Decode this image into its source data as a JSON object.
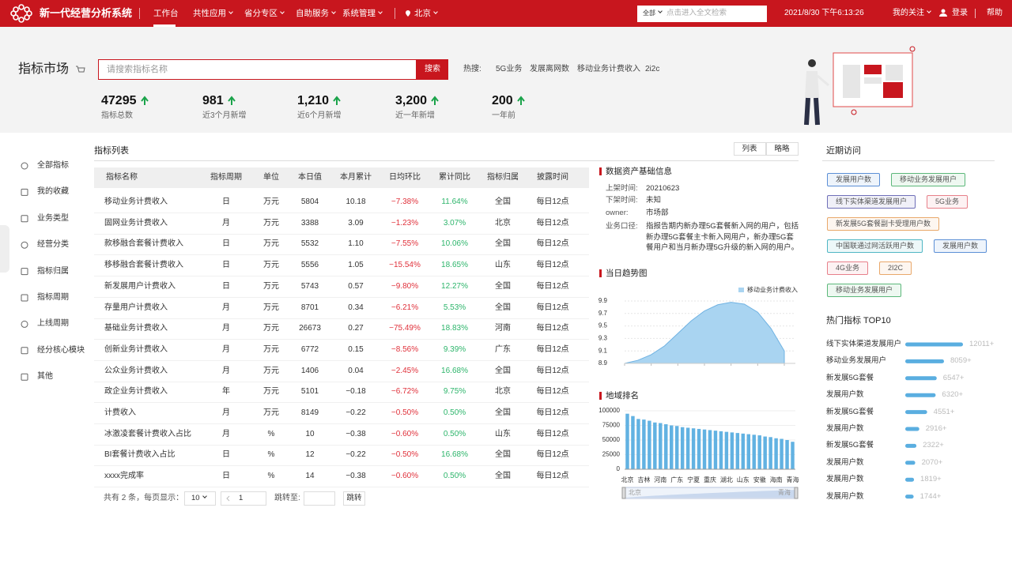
{
  "header": {
    "title": "新一代经营分析系统",
    "nav": [
      "工作台",
      "共性应用",
      "省分专区",
      "自助服务",
      "系统管理"
    ],
    "location": "北京",
    "search_scope": "全部",
    "search_placeholder": "点击进入全文检索",
    "datetime": "2021/8/30 下午6:13:26",
    "user_links": [
      "我的关注",
      "登录",
      "帮助"
    ]
  },
  "market": {
    "title": "指标市场",
    "search_placeholder": "请搜索指标名称",
    "search_button": "搜索",
    "hot_label": "热搜:",
    "hot_terms": [
      "5G业务",
      "发展离网数",
      "移动业务计费收入",
      "2i2c"
    ],
    "stats": [
      {
        "value": "47295",
        "label": "指标总数"
      },
      {
        "value": "981",
        "label": "近3个月新增"
      },
      {
        "value": "1,210",
        "label": "近6个月新增"
      },
      {
        "value": "3,200",
        "label": "近一年新增"
      },
      {
        "value": "200",
        "label": "一年前"
      }
    ]
  },
  "sidebar": [
    "全部指标",
    "我的收藏",
    "业务类型",
    "经营分类",
    "指标归属",
    "指标周期",
    "上线周期",
    "经分核心模块",
    "其他"
  ],
  "table": {
    "title": "指标列表",
    "views": [
      "列表",
      "略略"
    ],
    "columns": [
      "指标名称",
      "指标周期",
      "单位",
      "本日值",
      "本月累计",
      "日均环比",
      "累计同比",
      "指标归属",
      "披露时间"
    ],
    "rows": [
      [
        "移动业务计费收入",
        "日",
        "万元",
        "5804",
        "10.18",
        "−7.38%",
        "11.64%",
        "全国",
        "每日12点"
      ],
      [
        "固网业务计费收入",
        "月",
        "万元",
        "3388",
        "3.09",
        "−1.23%",
        "3.07%",
        "北京",
        "每日12点"
      ],
      [
        "款移融合套餐计费收入",
        "日",
        "万元",
        "5532",
        "1.10",
        "−7.55%",
        "10.06%",
        "全国",
        "每日12点"
      ],
      [
        "移移融合套餐计费收入",
        "日",
        "万元",
        "5556",
        "1.05",
        "−15.54%",
        "18.65%",
        "山东",
        "每日12点"
      ],
      [
        "新发展用户计费收入",
        "日",
        "万元",
        "5743",
        "0.57",
        "−9.80%",
        "12.27%",
        "全国",
        "每日12点"
      ],
      [
        "存量用户计费收入",
        "月",
        "万元",
        "8701",
        "0.34",
        "−6.21%",
        "5.53%",
        "全国",
        "每日12点"
      ],
      [
        "基础业务计费收入",
        "月",
        "万元",
        "26673",
        "0.27",
        "−75.49%",
        "18.83%",
        "河南",
        "每日12点"
      ],
      [
        "创新业务计费收入",
        "月",
        "万元",
        "6772",
        "0.15",
        "−8.56%",
        "9.39%",
        "广东",
        "每日12点"
      ],
      [
        "公众业务计费收入",
        "月",
        "万元",
        "1406",
        "0.04",
        "−2.45%",
        "16.68%",
        "全国",
        "每日12点"
      ],
      [
        "政企业务计费收入",
        "年",
        "万元",
        "5101",
        "−0.18",
        "−6.72%",
        "9.75%",
        "北京",
        "每日12点"
      ],
      [
        "计费收入",
        "月",
        "万元",
        "8149",
        "−0.22",
        "−0.50%",
        "0.50%",
        "全国",
        "每日12点"
      ],
      [
        "冰激凌套餐计费收入占比",
        "月",
        "%",
        "10",
        "−0.38",
        "−0.60%",
        "0.50%",
        "山东",
        "每日12点"
      ],
      [
        "BI套餐计费收入占比",
        "日",
        "%",
        "12",
        "−0.22",
        "−0.50%",
        "16.68%",
        "全国",
        "每日12点"
      ],
      [
        "xxxx完成率",
        "日",
        "%",
        "14",
        "−0.38",
        "−0.60%",
        "0.50%",
        "全国",
        "每日12点"
      ]
    ],
    "pagination": {
      "total_text": "共有 2 条，每页显示：",
      "page_size": "10",
      "page": "1",
      "jump_label": "跳转至:",
      "jump_button": "跳转"
    }
  },
  "asset_info": {
    "title": "数据资产基础信息",
    "fields": [
      {
        "label": "上架时间:",
        "value": "20210623"
      },
      {
        "label": "下架时间:",
        "value": "未知"
      },
      {
        "label": "owner:",
        "value": "市场部"
      },
      {
        "label": "业务口径:",
        "value": "指报告期内新办理5G套餐新入网的用户，包括新办理5G套餐主卡新入网用户，新办理5G套餐用户和当月新办理5G升级的新入网的用户。"
      }
    ]
  },
  "trend_chart": {
    "type": "area",
    "title": "当日趋势图",
    "series": [
      {
        "name": "移动业务计费收入",
        "color": "#a9d4f1",
        "values": [
          8.9,
          8.95,
          9.04,
          9.18,
          9.38,
          9.58,
          9.74,
          9.84,
          9.88,
          9.85,
          9.72,
          9.46,
          9.1
        ]
      }
    ],
    "ylim": [
      8.9,
      9.9
    ],
    "yticks": [
      8.9,
      9.1,
      9.3,
      9.5,
      9.7,
      9.9
    ]
  },
  "region_chart": {
    "type": "bar",
    "title": "地域排名",
    "categories": [
      "北京",
      null,
      null,
      "吉林",
      null,
      null,
      "河南",
      null,
      null,
      "广东",
      null,
      null,
      "宁夏",
      null,
      null,
      "重庆",
      null,
      null,
      "湖北",
      null,
      null,
      "山东",
      null,
      null,
      "安徽",
      null,
      null,
      "海南",
      null,
      null,
      "青海"
    ],
    "values": [
      95000,
      91000,
      86000,
      85000,
      83000,
      80000,
      79000,
      77000,
      75000,
      74000,
      72000,
      71000,
      70000,
      69000,
      68000,
      67000,
      66000,
      65000,
      64000,
      63000,
      62000,
      61000,
      60000,
      59000,
      58000,
      56000,
      55000,
      53000,
      52000,
      50000,
      47000
    ],
    "color": "#62b2e2",
    "ylim": [
      0,
      100000
    ],
    "yticks": [
      0,
      25000,
      50000,
      75000,
      100000
    ],
    "zoom_labels": [
      "北京",
      "青海"
    ]
  },
  "recent": {
    "title": "近期访问",
    "tags": [
      {
        "text": "发展用户数",
        "color": "#5b8fd6"
      },
      {
        "text": "移动业务发展用户",
        "color": "#5cb87a"
      },
      {
        "text": "线下实体渠道发展用户",
        "color": "#6f6fb8"
      },
      {
        "text": "5G业务",
        "color": "#e7808a"
      },
      {
        "text": "新发展5G套餐副卡受理用户数",
        "color": "#e9a86a"
      },
      {
        "text": "中国联通过网活跃用户数",
        "color": "#4fb6c4"
      },
      {
        "text": "发展用户数",
        "color": "#5b8fd6"
      },
      {
        "text": "4G业务",
        "color": "#e7808a"
      },
      {
        "text": "2I2C",
        "color": "#e9a86a"
      },
      {
        "text": "移动业务发展用户",
        "color": "#5cb87a"
      }
    ]
  },
  "hot_top": {
    "title": "热门指标 TOP10",
    "color": "#5aaee0",
    "items": [
      {
        "name": "线下实体渠道发展用户",
        "value": 12011,
        "label": "12011+"
      },
      {
        "name": "移动业务发展用户",
        "value": 8059,
        "label": "8059+"
      },
      {
        "name": "新发展5G套餐",
        "value": 6547,
        "label": "6547+"
      },
      {
        "name": "发展用户数",
        "value": 6320,
        "label": "6320+"
      },
      {
        "name": "新发展5G套餐",
        "value": 4551,
        "label": "4551+"
      },
      {
        "name": "发展用户数",
        "value": 2916,
        "label": "2916+"
      },
      {
        "name": "新发展5G套餐",
        "value": 2322,
        "label": "2322+"
      },
      {
        "name": "发展用户数",
        "value": 2070,
        "label": "2070+"
      },
      {
        "name": "发展用户数",
        "value": 1819,
        "label": "1819+"
      },
      {
        "name": "发展用户数",
        "value": 1744,
        "label": "1744+"
      }
    ]
  }
}
